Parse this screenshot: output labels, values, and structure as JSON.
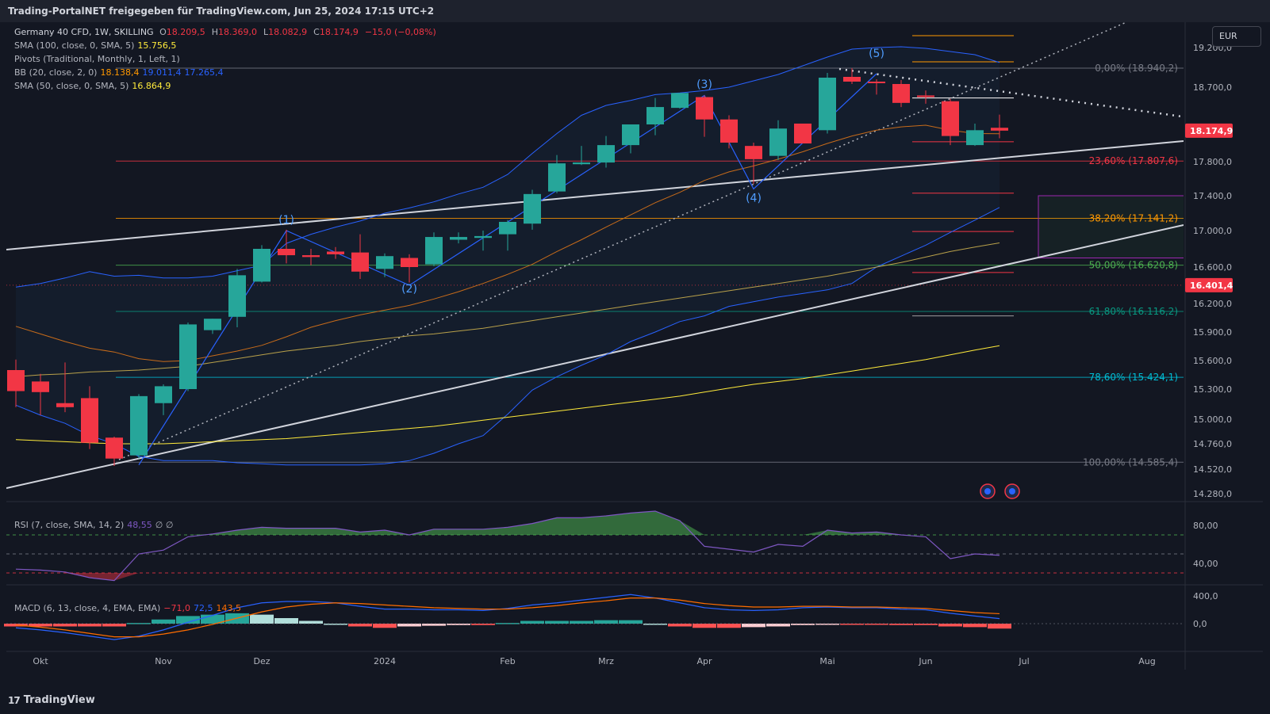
{
  "header": {
    "title": "Trading-PortalNET freigegeben für TradingView.com, Jun 25, 2024 17:15 UTC+2"
  },
  "footer": {
    "brand": "TradingView",
    "brand_mark": "17"
  },
  "currency_button": "EUR",
  "legend": {
    "symbol": "Germany 40 CFD, 1W, SKILLING",
    "ohlc": [
      {
        "k": "O",
        "v": "18.209,5"
      },
      {
        "k": "H",
        "v": "18.369,0"
      },
      {
        "k": "L",
        "v": "18.082,9"
      },
      {
        "k": "C",
        "v": "18.174,9"
      },
      {
        "k": "",
        "v": "−15,0 (−0,08%)"
      }
    ],
    "sma100": {
      "label": "SMA (100, close, 0, SMA, 5)",
      "value": "15.756,5"
    },
    "pivots": {
      "label": "Pivots (Traditional, Monthly, 1, Left, 1)"
    },
    "bb": {
      "label": "BB (20, close, 2, 0)",
      "basis": "18.138,4",
      "upper": "19.011,4",
      "lower": "17.265,4"
    },
    "sma50": {
      "label": "SMA (50, close, 0, SMA, 5)",
      "value": "16.864,9"
    },
    "rsi": {
      "label": "RSI (7, close, SMA, 14, 2)",
      "value": "48,55",
      "extra": "∅ ∅"
    },
    "macd": {
      "label": "MACD (6, 13, close, 4, EMA, EMA)",
      "hist": "−71,0",
      "macd": "72,5",
      "signal": "143,5"
    }
  },
  "colors": {
    "up": "#26a69a",
    "down": "#f23645",
    "bb": "#2962ff",
    "bb_basis": "#ff9800",
    "sma100": "#ffeb3b",
    "sma50": "#b8a04a",
    "rsi": "#7e57c2",
    "macd": "#2962ff",
    "signal": "#ff6d00",
    "trend": "#d1d4dc"
  },
  "chart_data": {
    "type": "candlestick",
    "title": "Germany 40 CFD, 1W, SKILLING",
    "ylim": [
      14150,
      19300
    ],
    "price_ticks": [
      "19.200,0",
      "18.700,0",
      "17.800,0",
      "17.400,0",
      "17.000,0",
      "16.600,0",
      "16.200,0",
      "15.900,0",
      "15.600,0",
      "15.300,0",
      "15.000,0",
      "14.760,0",
      "14.520,0",
      "14.280,0"
    ],
    "x_labels": [
      {
        "label": "Okt",
        "week": 1
      },
      {
        "label": "Nov",
        "week": 6
      },
      {
        "label": "Dez",
        "week": 10
      },
      {
        "label": "2024",
        "week": 15
      },
      {
        "label": "Feb",
        "week": 20
      },
      {
        "label": "Mrz",
        "week": 24
      },
      {
        "label": "Apr",
        "week": 28
      },
      {
        "label": "Mai",
        "week": 33
      },
      {
        "label": "Jun",
        "week": 37
      },
      {
        "label": "Jul",
        "week": 41
      },
      {
        "label": "Aug",
        "week": 46
      }
    ],
    "candles": [
      {
        "o": 15500,
        "h": 15610,
        "l": 15120,
        "c": 15280
      },
      {
        "o": 15380,
        "h": 15460,
        "l": 15040,
        "c": 15270
      },
      {
        "o": 15160,
        "h": 15580,
        "l": 15070,
        "c": 15120
      },
      {
        "o": 15210,
        "h": 15330,
        "l": 14710,
        "c": 14770
      },
      {
        "o": 14820,
        "h": 14830,
        "l": 14550,
        "c": 14620
      },
      {
        "o": 14650,
        "h": 15250,
        "l": 14620,
        "c": 15230
      },
      {
        "o": 15160,
        "h": 15350,
        "l": 15040,
        "c": 15330
      },
      {
        "o": 15300,
        "h": 16000,
        "l": 15280,
        "c": 15980
      },
      {
        "o": 15920,
        "h": 16040,
        "l": 15880,
        "c": 16040
      },
      {
        "o": 16060,
        "h": 16580,
        "l": 15950,
        "c": 16510
      },
      {
        "o": 16440,
        "h": 16840,
        "l": 16430,
        "c": 16800
      },
      {
        "o": 16800,
        "h": 17010,
        "l": 16640,
        "c": 16730
      },
      {
        "o": 16730,
        "h": 16800,
        "l": 16620,
        "c": 16710
      },
      {
        "o": 16770,
        "h": 16820,
        "l": 16690,
        "c": 16740
      },
      {
        "o": 16760,
        "h": 16960,
        "l": 16470,
        "c": 16550
      },
      {
        "o": 16580,
        "h": 16750,
        "l": 16490,
        "c": 16720
      },
      {
        "o": 16700,
        "h": 16740,
        "l": 16430,
        "c": 16600
      },
      {
        "o": 16630,
        "h": 16980,
        "l": 16610,
        "c": 16930
      },
      {
        "o": 16900,
        "h": 16980,
        "l": 16860,
        "c": 16930
      },
      {
        "o": 16920,
        "h": 17000,
        "l": 16780,
        "c": 16940
      },
      {
        "o": 16960,
        "h": 17120,
        "l": 16780,
        "c": 17100
      },
      {
        "o": 17080,
        "h": 17470,
        "l": 17010,
        "c": 17420
      },
      {
        "o": 17450,
        "h": 17880,
        "l": 17430,
        "c": 17780
      },
      {
        "o": 17770,
        "h": 17990,
        "l": 17760,
        "c": 17790
      },
      {
        "o": 17790,
        "h": 18110,
        "l": 17730,
        "c": 18000
      },
      {
        "o": 18000,
        "h": 18240,
        "l": 17900,
        "c": 18250
      },
      {
        "o": 18250,
        "h": 18570,
        "l": 18120,
        "c": 18460
      },
      {
        "o": 18450,
        "h": 18580,
        "l": 18440,
        "c": 18630
      },
      {
        "o": 18580,
        "h": 18600,
        "l": 18100,
        "c": 18310
      },
      {
        "o": 18310,
        "h": 18360,
        "l": 17960,
        "c": 18030
      },
      {
        "o": 17990,
        "h": 18030,
        "l": 17540,
        "c": 17830
      },
      {
        "o": 17870,
        "h": 18300,
        "l": 17820,
        "c": 18200
      },
      {
        "o": 18260,
        "h": 18260,
        "l": 18030,
        "c": 18020
      },
      {
        "o": 18180,
        "h": 18880,
        "l": 18140,
        "c": 18820
      },
      {
        "o": 18830,
        "h": 18940,
        "l": 18740,
        "c": 18770
      },
      {
        "o": 18770,
        "h": 18800,
        "l": 18610,
        "c": 18750
      },
      {
        "o": 18740,
        "h": 18790,
        "l": 18460,
        "c": 18510
      },
      {
        "o": 18600,
        "h": 18660,
        "l": 18500,
        "c": 18580
      },
      {
        "o": 18530,
        "h": 18560,
        "l": 18000,
        "c": 18110
      },
      {
        "o": 18000,
        "h": 18260,
        "l": 17990,
        "c": 18180
      },
      {
        "o": 18209.5,
        "h": 18369,
        "l": 18082.9,
        "c": 18174.9
      }
    ],
    "fibonacci": [
      {
        "label": "0,00% (18.940,2)",
        "price": 18940.2,
        "color": "#787b86"
      },
      {
        "label": "23,60% (17.807,6)",
        "price": 17807.6,
        "color": "#f23645"
      },
      {
        "label": "38,20% (17.141,2)",
        "price": 17141.2,
        "color": "#ff9800"
      },
      {
        "label": "50,00% (16.620,8)",
        "price": 16620.8,
        "color": "#4caf50"
      },
      {
        "label": "61,80% (16.116,2)",
        "price": 16116.2,
        "color": "#089981"
      },
      {
        "label": "78,60% (15.424,1)",
        "price": 15424.1,
        "color": "#00bcd4"
      },
      {
        "label": "100,00% (14.585,4)",
        "price": 14585.4,
        "color": "#787b86"
      }
    ],
    "price_tags": [
      {
        "label": "18.174,9",
        "price": 18174.9,
        "bg": "#f23645"
      },
      {
        "label": "16.401,4",
        "price": 16401.4,
        "bg": "#f23645"
      }
    ],
    "wave_labels": [
      {
        "label": "(1)",
        "week": 11,
        "price": 17080
      },
      {
        "label": "(2)",
        "week": 16,
        "price": 16320
      },
      {
        "label": "(3)",
        "week": 28,
        "price": 18690
      },
      {
        "label": "(4)",
        "week": 30,
        "price": 17330
      },
      {
        "label": "(5)",
        "week": 35,
        "price": 19080
      }
    ],
    "wave_path": [
      {
        "w": 5,
        "p": 14560
      },
      {
        "w": 11,
        "p": 17000
      },
      {
        "w": 16,
        "p": 16400
      },
      {
        "w": 28,
        "p": 18600
      },
      {
        "w": 30,
        "p": 17480
      },
      {
        "w": 35,
        "p": 18870
      }
    ],
    "bollinger": {
      "upper": [
        16380,
        16420,
        16480,
        16550,
        16500,
        16510,
        16480,
        16480,
        16500,
        16560,
        16620,
        16860,
        16960,
        17040,
        17110,
        17200,
        17260,
        17330,
        17420,
        17500,
        17650,
        17900,
        18140,
        18360,
        18480,
        18540,
        18610,
        18630,
        18660,
        18700,
        18780,
        18860,
        18970,
        19080,
        19180,
        19200,
        19210,
        19190,
        19150,
        19110,
        19011.4
      ],
      "basis": [
        15960,
        15880,
        15800,
        15730,
        15690,
        15620,
        15590,
        15600,
        15650,
        15700,
        15760,
        15850,
        15950,
        16020,
        16080,
        16130,
        16180,
        16250,
        16330,
        16420,
        16520,
        16630,
        16770,
        16900,
        17040,
        17180,
        17320,
        17440,
        17580,
        17680,
        17750,
        17830,
        17920,
        18020,
        18110,
        18180,
        18220,
        18240,
        18180,
        18140,
        18138.4
      ],
      "lower": [
        15140,
        15040,
        14960,
        14840,
        14760,
        14640,
        14600,
        14600,
        14600,
        14580,
        14570,
        14560,
        14560,
        14560,
        14560,
        14570,
        14600,
        14670,
        14760,
        14840,
        15050,
        15290,
        15430,
        15550,
        15660,
        15800,
        15900,
        16010,
        16070,
        16170,
        16220,
        16270,
        16310,
        16350,
        16420,
        16600,
        16720,
        16840,
        16980,
        17120,
        17265.4
      ]
    },
    "sma100": [
      14800,
      14790,
      14780,
      14770,
      14760,
      14760,
      14760,
      14770,
      14780,
      14790,
      14800,
      14810,
      14830,
      14850,
      14870,
      14890,
      14910,
      14930,
      14960,
      14990,
      15020,
      15050,
      15080,
      15110,
      15140,
      15170,
      15200,
      15230,
      15270,
      15310,
      15350,
      15380,
      15410,
      15450,
      15490,
      15530,
      15570,
      15610,
      15660,
      15710,
      15756.5
    ],
    "sma50": [
      15430,
      15450,
      15460,
      15480,
      15490,
      15500,
      15520,
      15540,
      15580,
      15620,
      15660,
      15700,
      15730,
      15760,
      15800,
      15830,
      15860,
      15880,
      15910,
      15940,
      15980,
      16020,
      16060,
      16100,
      16140,
      16180,
      16220,
      16260,
      16300,
      16340,
      16380,
      16420,
      16460,
      16500,
      16550,
      16600,
      16650,
      16710,
      16770,
      16820,
      16864.9
    ],
    "rsi": [
      34,
      33,
      31,
      25,
      22,
      50,
      54,
      68,
      71,
      75,
      78,
      77,
      77,
      77,
      73,
      75,
      70,
      76,
      76,
      76,
      78,
      82,
      88,
      88,
      90,
      93,
      95,
      85,
      58,
      55,
      52,
      60,
      58,
      75,
      72,
      73,
      70,
      68,
      45,
      50,
      48.55
    ],
    "rsi_ticks": [
      "80,00",
      "40,00"
    ],
    "rsi_levels": [
      70,
      50,
      30
    ],
    "macd_line": [
      -60,
      -90,
      -130,
      -180,
      -230,
      -180,
      -90,
      20,
      120,
      230,
      300,
      320,
      320,
      300,
      250,
      210,
      210,
      200,
      200,
      190,
      220,
      270,
      300,
      340,
      380,
      420,
      370,
      300,
      230,
      200,
      190,
      200,
      230,
      240,
      230,
      230,
      210,
      200,
      150,
      110,
      72.5
    ],
    "macd_signal": [
      -20,
      -50,
      -90,
      -140,
      -190,
      -190,
      -150,
      -90,
      -10,
      80,
      170,
      240,
      280,
      300,
      290,
      270,
      250,
      230,
      220,
      210,
      210,
      230,
      260,
      300,
      330,
      370,
      370,
      340,
      290,
      260,
      240,
      240,
      250,
      250,
      240,
      240,
      230,
      220,
      190,
      160,
      143.5
    ],
    "macd_hist": [
      -40,
      -40,
      -40,
      -40,
      -40,
      10,
      60,
      110,
      130,
      150,
      130,
      80,
      40,
      0,
      -40,
      -60,
      -40,
      -30,
      -20,
      -20,
      10,
      40,
      40,
      40,
      50,
      50,
      0,
      -40,
      -60,
      -60,
      -50,
      -40,
      -20,
      -10,
      -10,
      -10,
      -20,
      -20,
      -40,
      -50,
      -71.0
    ],
    "macd_ticks": [
      "400,0",
      "0,0"
    ]
  }
}
